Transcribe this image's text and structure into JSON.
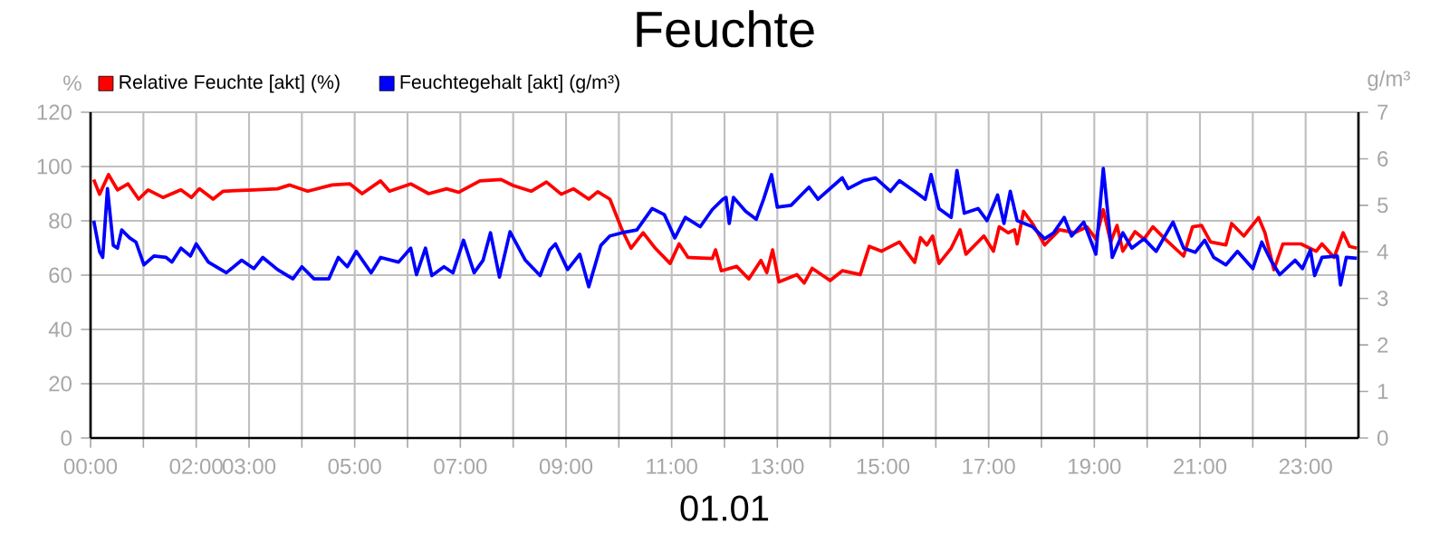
{
  "chart_data": {
    "type": "line",
    "title": "Feuchte",
    "xlabel": "01.01",
    "ylabel": "%",
    "y2label": "g/m³",
    "xlim": [
      0,
      24
    ],
    "xticks": [
      {
        "value": 0,
        "label": "00:00"
      },
      {
        "value": 1,
        "label": null
      },
      {
        "value": 2,
        "label": "02:00"
      },
      {
        "value": 3,
        "label": "03:00"
      },
      {
        "value": 4,
        "label": null
      },
      {
        "value": 5,
        "label": "05:00"
      },
      {
        "value": 6,
        "label": null
      },
      {
        "value": 7,
        "label": "07:00"
      },
      {
        "value": 8,
        "label": null
      },
      {
        "value": 9,
        "label": "09:00"
      },
      {
        "value": 10,
        "label": null
      },
      {
        "value": 11,
        "label": "11:00"
      },
      {
        "value": 12,
        "label": null
      },
      {
        "value": 13,
        "label": "13:00"
      },
      {
        "value": 14,
        "label": null
      },
      {
        "value": 15,
        "label": "15:00"
      },
      {
        "value": 16,
        "label": null
      },
      {
        "value": 17,
        "label": "17:00"
      },
      {
        "value": 18,
        "label": null
      },
      {
        "value": 19,
        "label": "19:00"
      },
      {
        "value": 20,
        "label": null
      },
      {
        "value": 21,
        "label": "21:00"
      },
      {
        "value": 22,
        "label": null
      },
      {
        "value": 23,
        "label": "23:00"
      }
    ],
    "ylim": [
      0,
      120
    ],
    "yticks": [
      0,
      20,
      40,
      60,
      80,
      100,
      120
    ],
    "y2lim": [
      0,
      7
    ],
    "y2ticks": [
      0,
      1,
      2,
      3,
      4,
      5,
      6,
      7
    ],
    "grid": true,
    "legend": "top left",
    "series": [
      {
        "name": "Relative Feuchte [akt] (%)",
        "color": "#ff0000",
        "x": [
          0.06,
          0.17,
          0.34,
          0.51,
          0.71,
          0.91,
          1.09,
          1.37,
          1.71,
          1.91,
          2.06,
          2.32,
          2.51,
          3.09,
          3.54,
          3.77,
          4.11,
          4.57,
          4.91,
          5.14,
          5.49,
          5.66,
          6.06,
          6.4,
          6.74,
          6.97,
          7.37,
          7.77,
          8.0,
          8.34,
          8.63,
          8.91,
          9.14,
          9.43,
          9.6,
          9.83,
          10.06,
          10.23,
          10.46,
          10.69,
          10.97,
          11.14,
          11.31,
          11.77,
          11.83,
          11.94,
          12.23,
          12.46,
          12.69,
          12.8,
          12.91,
          13.03,
          13.37,
          13.51,
          13.66,
          14.0,
          14.23,
          14.57,
          14.74,
          14.97,
          15.31,
          15.6,
          15.71,
          15.83,
          15.94,
          16.06,
          16.29,
          16.46,
          16.57,
          16.91,
          17.09,
          17.2,
          17.37,
          17.49,
          17.54,
          17.66,
          17.83,
          18.06,
          18.34,
          18.63,
          18.86,
          19.03,
          19.17,
          19.31,
          19.43,
          19.54,
          19.77,
          19.94,
          20.11,
          20.34,
          20.69,
          20.86,
          21.03,
          21.2,
          21.49,
          21.6,
          21.83,
          22.11,
          22.23,
          22.4,
          22.57,
          22.91,
          23.2,
          23.31,
          23.54,
          23.71,
          23.83,
          23.97
        ],
        "values": [
          95.2,
          89.8,
          97,
          91.4,
          93.6,
          88,
          91.4,
          88.6,
          91.4,
          88.6,
          91.8,
          88,
          90.9,
          91.4,
          91.8,
          93.2,
          90.9,
          93.2,
          93.6,
          90,
          94.7,
          90.9,
          93.6,
          90,
          91.8,
          90.5,
          94.7,
          95.2,
          93,
          90.9,
          94.3,
          89.8,
          91.8,
          88,
          90.7,
          88,
          76.7,
          69.9,
          75.6,
          69.9,
          64.3,
          71.5,
          66.5,
          66.1,
          69.3,
          61.6,
          63.2,
          58.6,
          65.4,
          60.9,
          69.3,
          57.5,
          60.2,
          57.1,
          62.5,
          58,
          61.6,
          60.2,
          70.6,
          68.8,
          72.2,
          64.7,
          73.8,
          71.1,
          74.4,
          64.3,
          69.9,
          76.7,
          67.7,
          74.4,
          68.8,
          77.8,
          75.6,
          76.7,
          71.5,
          83.5,
          79,
          71.1,
          76.7,
          75.6,
          77.8,
          73.3,
          84.1,
          72.2,
          78.3,
          68.8,
          76,
          73.3,
          77.8,
          73.3,
          67,
          77.8,
          78.3,
          72.2,
          71.1,
          79,
          74.4,
          81.2,
          75.6,
          62,
          71.5,
          71.5,
          68.8,
          71.5,
          66.5,
          75.6,
          70.6,
          69.9
        ]
      },
      {
        "name": "Feuchtegehalt [akt] (g/m³)",
        "color": "#0000ff",
        "axis": "y2",
        "x": [
          0.06,
          0.17,
          0.23,
          0.32,
          0.43,
          0.51,
          0.59,
          0.74,
          0.86,
          1.01,
          1.2,
          1.43,
          1.54,
          1.71,
          1.89,
          2.0,
          2.23,
          2.57,
          2.86,
          3.09,
          3.26,
          3.54,
          3.83,
          4.0,
          4.23,
          4.51,
          4.69,
          4.86,
          5.03,
          5.31,
          5.49,
          5.83,
          6.06,
          6.17,
          6.34,
          6.46,
          6.69,
          6.86,
          7.06,
          7.26,
          7.43,
          7.57,
          7.74,
          7.94,
          8.23,
          8.51,
          8.69,
          8.8,
          9.03,
          9.26,
          9.43,
          9.66,
          9.83,
          10.06,
          10.34,
          10.63,
          10.86,
          11.06,
          11.26,
          11.54,
          11.77,
          11.97,
          12.03,
          12.09,
          12.17,
          12.4,
          12.6,
          12.74,
          12.89,
          13.0,
          13.26,
          13.6,
          13.77,
          14.23,
          14.34,
          14.63,
          14.86,
          15.14,
          15.31,
          15.6,
          15.8,
          15.91,
          16.06,
          16.29,
          16.4,
          16.54,
          16.8,
          16.97,
          17.17,
          17.29,
          17.41,
          17.54,
          17.83,
          18.06,
          18.23,
          18.43,
          18.57,
          18.8,
          19.03,
          19.17,
          19.34,
          19.54,
          19.71,
          19.94,
          20.17,
          20.49,
          20.69,
          20.91,
          21.09,
          21.26,
          21.49,
          21.71,
          22.0,
          22.17,
          22.34,
          22.51,
          22.8,
          22.94,
          23.09,
          23.17,
          23.31,
          23.6,
          23.66,
          23.77,
          23.97
        ],
        "values": [
          4.67,
          4.01,
          3.88,
          5.36,
          4.14,
          4.08,
          4.47,
          4.3,
          4.21,
          3.72,
          3.91,
          3.88,
          3.78,
          4.08,
          3.91,
          4.17,
          3.78,
          3.55,
          3.82,
          3.64,
          3.88,
          3.62,
          3.42,
          3.68,
          3.42,
          3.42,
          3.88,
          3.68,
          4.01,
          3.55,
          3.88,
          3.78,
          4.08,
          3.51,
          4.08,
          3.49,
          3.68,
          3.55,
          4.25,
          3.55,
          3.82,
          4.41,
          3.46,
          4.43,
          3.82,
          3.49,
          4.04,
          4.17,
          3.62,
          3.95,
          3.25,
          4.14,
          4.34,
          4.41,
          4.47,
          4.93,
          4.8,
          4.3,
          4.74,
          4.54,
          4.91,
          5.13,
          5.17,
          4.61,
          5.17,
          4.87,
          4.7,
          5.13,
          5.66,
          4.96,
          5.0,
          5.39,
          5.13,
          5.59,
          5.36,
          5.53,
          5.59,
          5.3,
          5.53,
          5.3,
          5.13,
          5.66,
          4.93,
          4.74,
          5.75,
          4.83,
          4.93,
          4.67,
          5.22,
          4.61,
          5.3,
          4.67,
          4.54,
          4.28,
          4.41,
          4.74,
          4.34,
          4.64,
          3.95,
          5.79,
          3.88,
          4.41,
          4.08,
          4.28,
          4.01,
          4.64,
          4.08,
          3.99,
          4.25,
          3.88,
          3.72,
          4.01,
          3.64,
          4.21,
          3.82,
          3.51,
          3.82,
          3.64,
          4.04,
          3.49,
          3.88,
          3.91,
          3.29,
          3.88,
          3.86
        ]
      }
    ]
  }
}
